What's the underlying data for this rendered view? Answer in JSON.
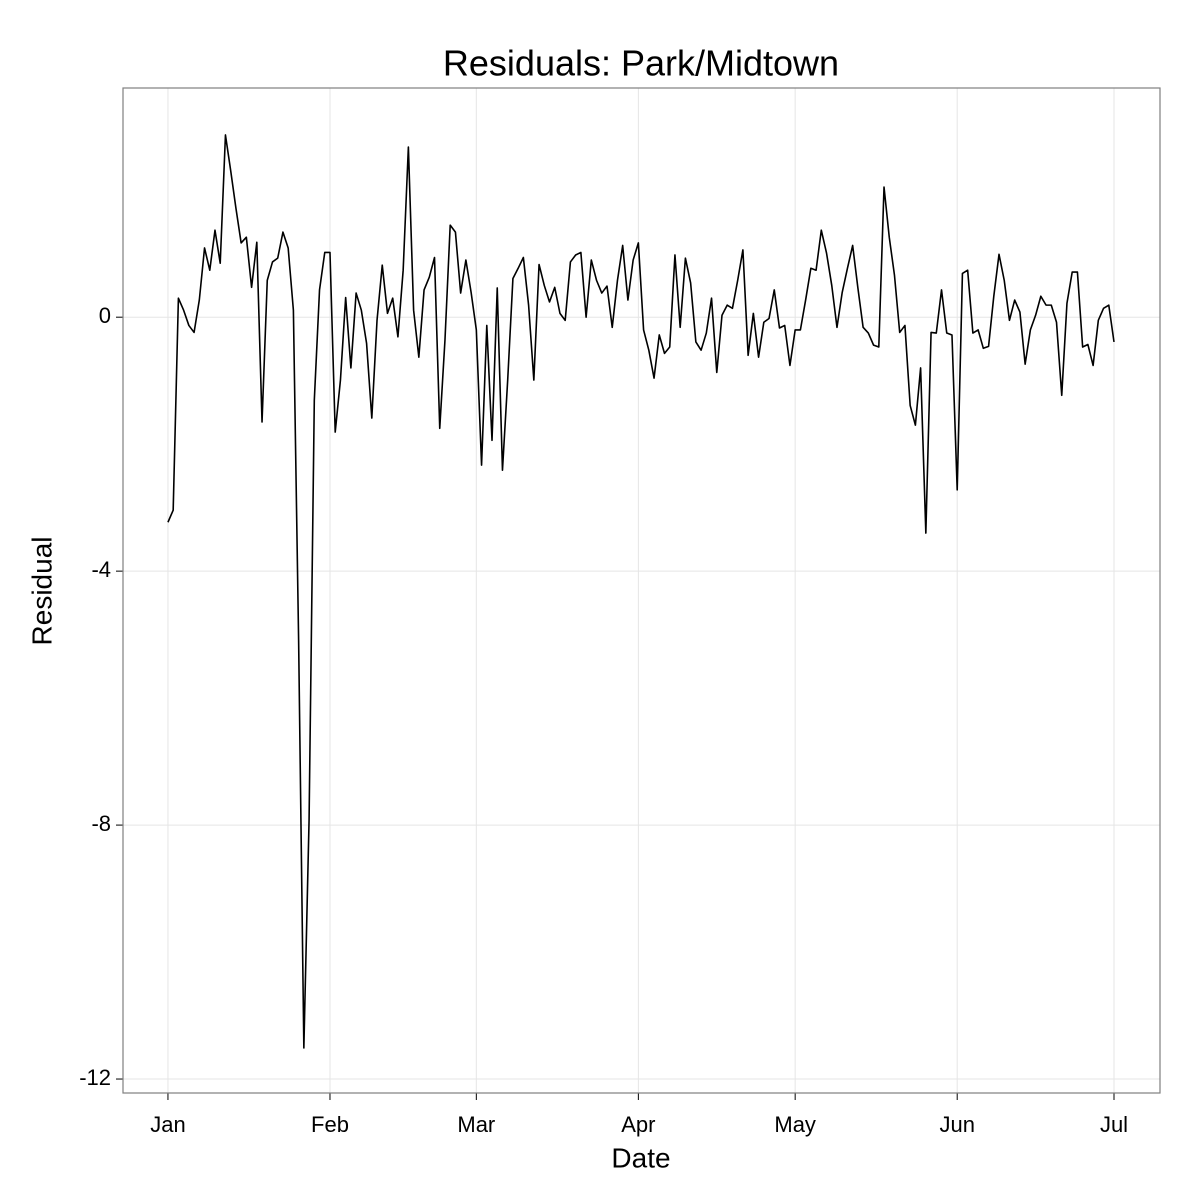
{
  "chart_data": {
    "type": "line",
    "title": "Residuals: Park/Midtown",
    "x_label": "Date",
    "y_label": "Residual",
    "x": [
      0,
      1,
      2,
      3,
      4,
      5,
      6,
      7,
      8,
      9,
      10,
      11,
      12,
      13,
      14,
      15,
      16,
      17,
      18,
      19,
      20,
      21,
      22,
      23,
      24,
      25,
      26,
      27,
      28,
      29,
      30,
      31,
      32,
      33,
      34,
      35,
      36,
      37,
      38,
      39,
      40,
      41,
      42,
      43,
      44,
      45,
      46,
      47,
      48,
      49,
      50,
      51,
      52,
      53,
      54,
      55,
      56,
      57,
      58,
      59,
      60,
      61,
      62,
      63,
      64,
      65,
      66,
      67,
      68,
      69,
      70,
      71,
      72,
      73,
      74,
      75,
      76,
      77,
      78,
      79,
      80,
      81,
      82,
      83,
      84,
      85,
      86,
      87,
      88,
      89,
      90,
      91,
      92,
      93,
      94,
      95,
      96,
      97,
      98,
      99,
      100,
      101,
      102,
      103,
      104,
      105,
      106,
      107,
      108,
      109,
      110,
      111,
      112,
      113,
      114,
      115,
      116,
      117,
      118,
      119,
      120,
      121,
      122,
      123,
      124,
      125,
      126,
      127,
      128,
      129,
      130,
      131,
      132,
      133,
      134,
      135,
      136,
      137,
      138,
      139,
      140,
      141,
      142,
      143,
      144,
      145,
      146,
      147,
      148,
      149,
      150,
      151,
      152,
      153,
      154,
      155,
      156,
      157,
      158,
      159,
      160,
      161,
      162,
      163,
      164,
      165,
      166,
      167,
      168,
      169,
      170,
      171,
      172,
      173,
      174,
      175,
      176,
      177,
      178,
      179,
      180,
      181
    ],
    "series": [
      {
        "name": "Residual",
        "color": "#000000",
        "values": [
          -3.23,
          -3.04,
          0.3,
          0.11,
          -0.13,
          -0.24,
          0.27,
          1.09,
          0.74,
          1.37,
          0.85,
          2.87,
          2.31,
          1.72,
          1.17,
          1.26,
          0.47,
          1.18,
          -1.65,
          0.58,
          0.87,
          0.93,
          1.34,
          1.09,
          0.11,
          -5.09,
          -11.51,
          -7.92,
          -1.31,
          0.43,
          1.02,
          1.02,
          -1.81,
          -0.99,
          0.31,
          -0.8,
          0.38,
          0.11,
          -0.41,
          -1.59,
          -0.05,
          0.82,
          0.06,
          0.3,
          -0.31,
          0.74,
          2.68,
          0.11,
          -0.63,
          0.43,
          0.63,
          0.94,
          -1.75,
          -0.36,
          1.45,
          1.34,
          0.38,
          0.9,
          0.39,
          -0.2,
          -2.33,
          -0.13,
          -1.94,
          0.46,
          -2.41,
          -0.99,
          0.61,
          0.77,
          0.94,
          0.19,
          -0.99,
          0.83,
          0.5,
          0.24,
          0.47,
          0.06,
          -0.05,
          0.87,
          0.98,
          1.02,
          0.0,
          0.9,
          0.58,
          0.38,
          0.49,
          -0.16,
          0.58,
          1.13,
          0.27,
          0.9,
          1.17,
          -0.2,
          -0.52,
          -0.96,
          -0.28,
          -0.57,
          -0.47,
          0.98,
          -0.16,
          0.93,
          0.54,
          -0.39,
          -0.52,
          -0.25,
          0.3,
          -0.87,
          0.03,
          0.19,
          0.14,
          0.58,
          1.06,
          -0.6,
          0.06,
          -0.63,
          -0.08,
          -0.02,
          0.43,
          -0.17,
          -0.13,
          -0.76,
          -0.2,
          -0.2,
          0.27,
          0.77,
          0.74,
          1.37,
          1.01,
          0.5,
          -0.16,
          0.39,
          0.77,
          1.13,
          0.46,
          -0.16,
          -0.25,
          -0.44,
          -0.47,
          2.05,
          1.26,
          0.66,
          -0.24,
          -0.13,
          -1.39,
          -1.7,
          -0.8,
          -3.4,
          -0.24,
          -0.25,
          0.43,
          -0.25,
          -0.28,
          -2.72,
          0.69,
          0.74,
          -0.25,
          -0.2,
          -0.49,
          -0.46,
          0.33,
          0.99,
          0.58,
          -0.05,
          0.27,
          0.08,
          -0.74,
          -0.2,
          0.03,
          0.33,
          0.19,
          0.19,
          -0.08,
          -1.23,
          0.22,
          0.71,
          0.71,
          -0.47,
          -0.43,
          -0.76,
          -0.05,
          0.14,
          0.19,
          -0.39
        ]
      }
    ],
    "xlim": [
      -8.6,
      189.8
    ],
    "xticks": [
      {
        "value": 0,
        "label": "Jan"
      },
      {
        "value": 31,
        "label": "Feb"
      },
      {
        "value": 59,
        "label": "Mar"
      },
      {
        "value": 90,
        "label": "Apr"
      },
      {
        "value": 120,
        "label": "May"
      },
      {
        "value": 151,
        "label": "Jun"
      },
      {
        "value": 181,
        "label": "Jul"
      }
    ],
    "ylim": [
      -12.22,
      3.61
    ],
    "yticks": [
      -12,
      -8,
      -4,
      0
    ],
    "grid": true
  }
}
